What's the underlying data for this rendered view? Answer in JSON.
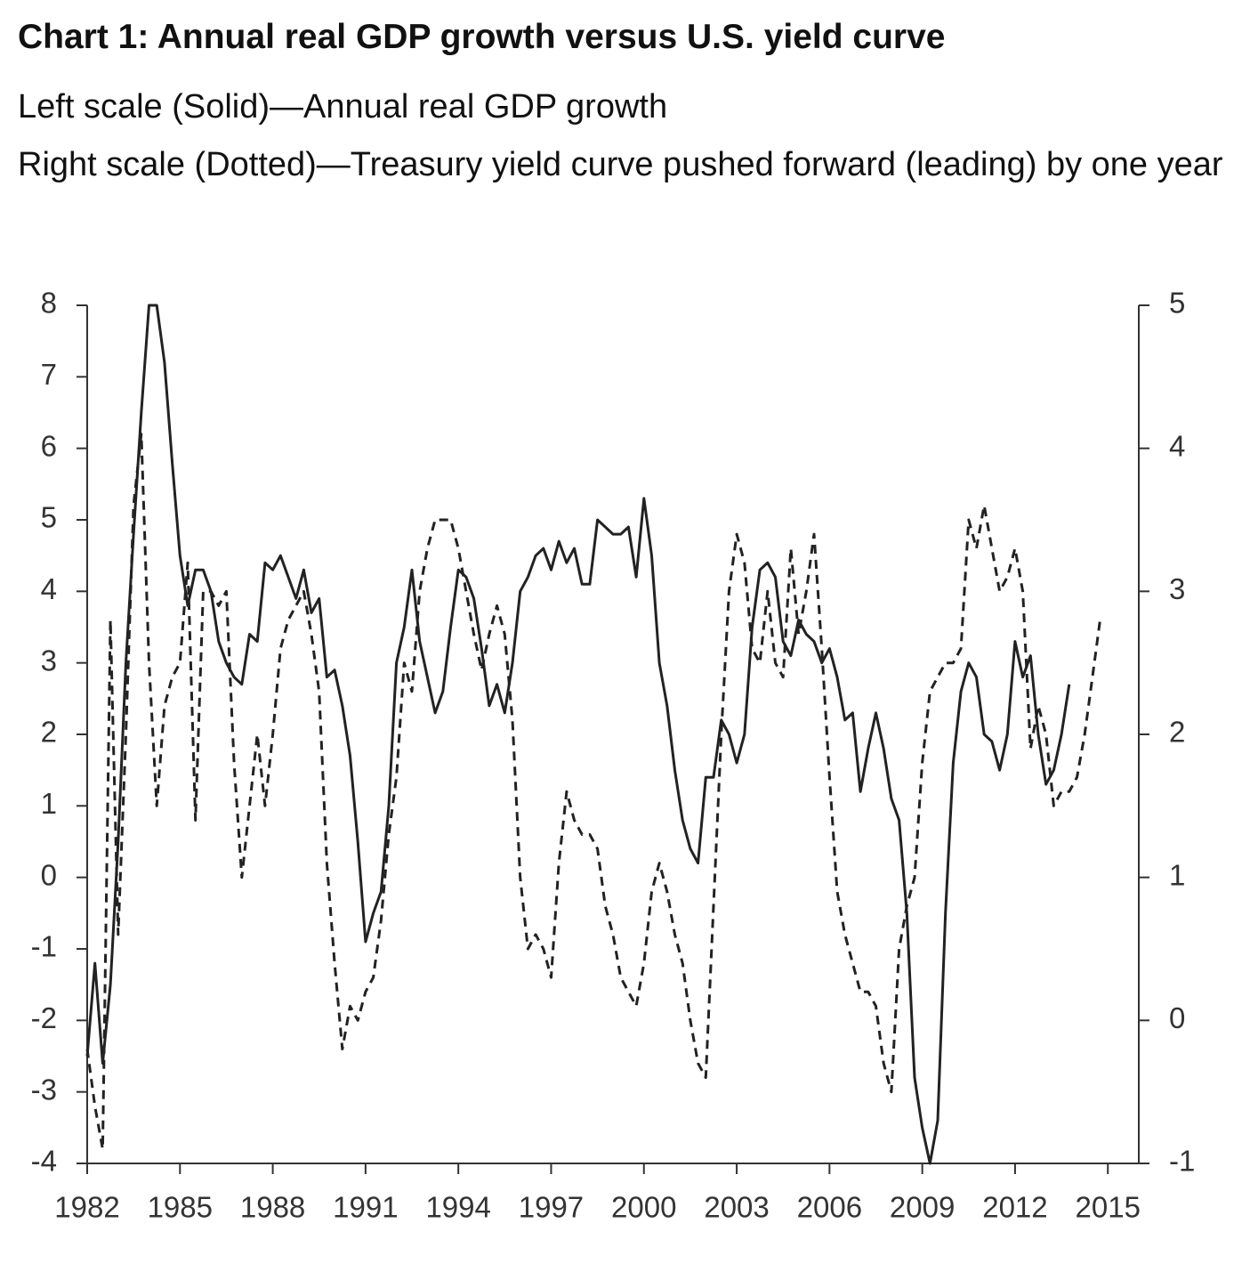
{
  "chart_data": {
    "type": "line",
    "title": "Chart 1: Annual real GDP growth versus U.S. yield curve",
    "subtitle": [
      "Left scale (Solid)—Annual real GDP growth",
      "Right scale (Dotted)—Treasury yield curve pushed forward (leading) by one year"
    ],
    "x": [
      1982,
      1982.25,
      1982.5,
      1982.75,
      1983,
      1983.25,
      1983.5,
      1983.75,
      1984,
      1984.25,
      1984.5,
      1984.75,
      1985,
      1985.25,
      1985.5,
      1985.75,
      1986,
      1986.25,
      1986.5,
      1986.75,
      1987,
      1987.25,
      1987.5,
      1987.75,
      1988,
      1988.25,
      1988.5,
      1988.75,
      1989,
      1989.25,
      1989.5,
      1989.75,
      1990,
      1990.25,
      1990.5,
      1990.75,
      1991,
      1991.25,
      1991.5,
      1991.75,
      1992,
      1992.25,
      1992.5,
      1992.75,
      1993,
      1993.25,
      1993.5,
      1993.75,
      1994,
      1994.25,
      1994.5,
      1994.75,
      1995,
      1995.25,
      1995.5,
      1995.75,
      1996,
      1996.25,
      1996.5,
      1996.75,
      1997,
      1997.25,
      1997.5,
      1997.75,
      1998,
      1998.25,
      1998.5,
      1998.75,
      1999,
      1999.25,
      1999.5,
      1999.75,
      2000,
      2000.25,
      2000.5,
      2000.75,
      2001,
      2001.25,
      2001.5,
      2001.75,
      2002,
      2002.25,
      2002.5,
      2002.75,
      2003,
      2003.25,
      2003.5,
      2003.75,
      2004,
      2004.25,
      2004.5,
      2004.75,
      2005,
      2005.25,
      2005.5,
      2005.75,
      2006,
      2006.25,
      2006.5,
      2006.75,
      2007,
      2007.25,
      2007.5,
      2007.75,
      2008,
      2008.25,
      2008.5,
      2008.75,
      2009,
      2009.25,
      2009.5,
      2009.75,
      2010,
      2010.25,
      2010.5,
      2010.75,
      2011,
      2011.25,
      2011.5,
      2011.75,
      2012,
      2012.25,
      2012.5,
      2012.75,
      2013,
      2013.25,
      2013.5,
      2013.75,
      2014,
      2014.25,
      2014.5,
      2014.75
    ],
    "series": [
      {
        "color": "#222222",
        "line_style": "solid",
        "axis": "y",
        "values": [
          -2.5,
          -1.2,
          -2.6,
          -1.5,
          0.5,
          3.0,
          4.8,
          6.5,
          8.0,
          8.0,
          7.2,
          5.8,
          4.5,
          3.8,
          4.3,
          4.3,
          4.0,
          3.3,
          3.0,
          2.8,
          2.7,
          3.4,
          3.3,
          4.4,
          4.3,
          4.5,
          4.2,
          3.9,
          4.3,
          3.7,
          3.9,
          2.8,
          2.9,
          2.4,
          1.7,
          0.5,
          -0.9,
          -0.5,
          -0.2,
          1.0,
          3.0,
          3.5,
          4.3,
          3.3,
          2.8,
          2.3,
          2.6,
          3.5,
          4.3,
          4.2,
          3.9,
          3.2,
          2.4,
          2.7,
          2.3,
          3.0,
          4.0,
          4.2,
          4.5,
          4.6,
          4.3,
          4.7,
          4.4,
          4.6,
          4.1,
          4.1,
          5.0,
          4.9,
          4.8,
          4.8,
          4.9,
          4.2,
          5.3,
          4.5,
          3.0,
          2.4,
          1.5,
          0.8,
          0.4,
          0.2,
          1.4,
          1.4,
          2.2,
          2.0,
          1.6,
          2.0,
          3.5,
          4.3,
          4.4,
          4.2,
          3.3,
          3.1,
          3.6,
          3.4,
          3.3,
          3.0,
          3.2,
          2.8,
          2.2,
          2.3,
          1.2,
          1.8,
          2.3,
          1.8,
          1.1,
          0.8,
          -0.5,
          -2.8,
          -3.5,
          -4.0,
          -3.4,
          -0.5,
          1.6,
          2.6,
          3.0,
          2.8,
          2.0,
          1.9,
          1.5,
          2.0,
          3.3,
          2.8,
          3.1,
          2.0,
          1.3,
          1.5,
          2.0,
          2.7,
          null,
          null,
          null,
          null
        ]
      },
      {
        "color": "#222222",
        "line_style": "dashed",
        "axis": "y2",
        "values": [
          -0.2,
          -0.6,
          -0.9,
          2.8,
          0.6,
          2.0,
          3.6,
          4.1,
          2.5,
          1.5,
          2.2,
          2.4,
          2.5,
          3.2,
          1.4,
          3.0,
          3.0,
          2.9,
          3.0,
          1.8,
          1.0,
          1.5,
          2.0,
          1.5,
          2.0,
          2.6,
          2.8,
          2.9,
          3.0,
          2.7,
          2.3,
          1.1,
          0.4,
          -0.2,
          0.1,
          0.0,
          0.2,
          0.3,
          0.7,
          1.3,
          1.7,
          2.5,
          2.3,
          3.0,
          3.3,
          3.5,
          3.5,
          3.5,
          3.3,
          3.0,
          2.7,
          2.45,
          2.7,
          2.9,
          2.7,
          2.1,
          1.0,
          0.5,
          0.6,
          0.5,
          0.3,
          1.1,
          1.6,
          1.4,
          1.3,
          1.3,
          1.2,
          0.8,
          0.6,
          0.3,
          0.2,
          0.1,
          0.4,
          0.9,
          1.1,
          0.9,
          0.6,
          0.4,
          0.0,
          -0.3,
          -0.4,
          0.8,
          2.0,
          3.0,
          3.4,
          3.2,
          2.6,
          2.5,
          3.0,
          2.5,
          2.4,
          3.3,
          2.7,
          3.0,
          3.4,
          2.6,
          1.7,
          0.9,
          0.6,
          0.4,
          0.2,
          0.2,
          0.1,
          -0.3,
          -0.5,
          0.5,
          0.8,
          1.0,
          1.8,
          2.3,
          2.4,
          2.5,
          2.5,
          2.6,
          3.5,
          3.3,
          3.6,
          3.3,
          3.0,
          3.1,
          3.3,
          3.0,
          1.9,
          2.2,
          2.0,
          1.5,
          1.6,
          1.6,
          1.7,
          2.0,
          2.4,
          2.8
        ]
      }
    ],
    "xlim": [
      1982,
      2016
    ],
    "xticks": [
      1982,
      1985,
      1988,
      1991,
      1994,
      1997,
      2000,
      2003,
      2006,
      2009,
      2012,
      2015
    ],
    "ylim": [
      -4,
      8
    ],
    "yticks": [
      -4,
      -3,
      -2,
      -1,
      0,
      1,
      2,
      3,
      4,
      5,
      6,
      7,
      8
    ],
    "y2lim": [
      -1,
      5
    ],
    "y2ticks": [
      -1,
      0,
      1,
      2,
      3,
      4,
      5
    ],
    "grid": false
  }
}
